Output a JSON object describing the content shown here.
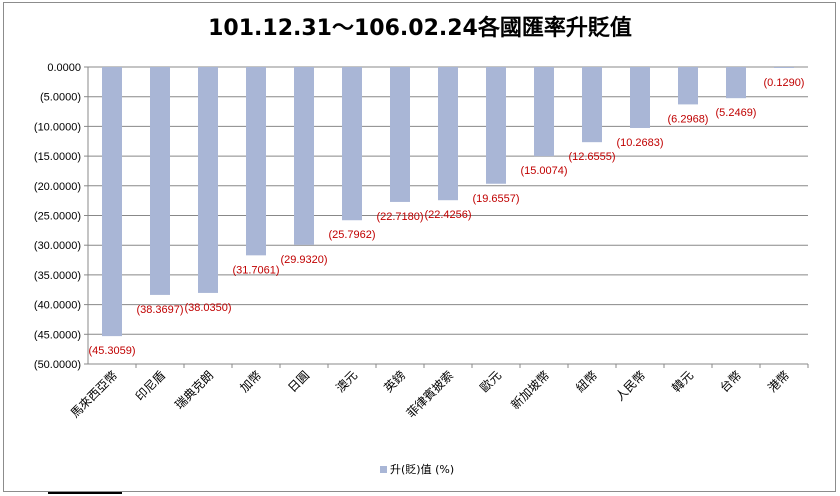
{
  "chart_data": {
    "type": "bar",
    "title": "101.12.31～106.02.24各國匯率升貶值",
    "categories": [
      "馬來西亞幣",
      "印尼盾",
      "瑞典克朗",
      "加幣",
      "日圓",
      "澳元",
      "英鎊",
      "菲律賓披索",
      "歐元",
      "新加坡幣",
      "紐幣",
      "人民幣",
      "韓元",
      "台幣",
      "港幣"
    ],
    "series": [
      {
        "name": "升(貶)值 (%)",
        "values": [
          -45.3059,
          -38.3697,
          -38.035,
          -31.7061,
          -29.932,
          -25.7962,
          -22.718,
          -22.4256,
          -19.6557,
          -15.0074,
          -12.6555,
          -10.2683,
          -6.2968,
          -5.2469,
          -0.129
        ],
        "labels": [
          "(45.3059)",
          "(38.3697)",
          "(38.0350)",
          "(31.7061)",
          "(29.9320)",
          "(25.7962)",
          "(22.7180)",
          "(22.4256)",
          "(19.6557)",
          "(15.0074)",
          "(12.6555)",
          "(10.2683)",
          "(6.2968)",
          "(5.2469)",
          "(0.1290)"
        ],
        "color": "#a9b6d6"
      }
    ],
    "ylim": [
      -50,
      0
    ],
    "yticks": [
      0,
      -5,
      -10,
      -15,
      -20,
      -25,
      -30,
      -35,
      -40,
      -45,
      -50
    ],
    "ytick_labels": [
      "0.0000",
      "(5.0000)",
      "(10.0000)",
      "(15.0000)",
      "(20.0000)",
      "(25.0000)",
      "(30.0000)",
      "(35.0000)",
      "(40.0000)",
      "(45.0000)",
      "(50.0000)"
    ],
    "grid": true,
    "legend": "bottom",
    "label_color": "#c00000",
    "xlabel": "",
    "ylabel": ""
  }
}
